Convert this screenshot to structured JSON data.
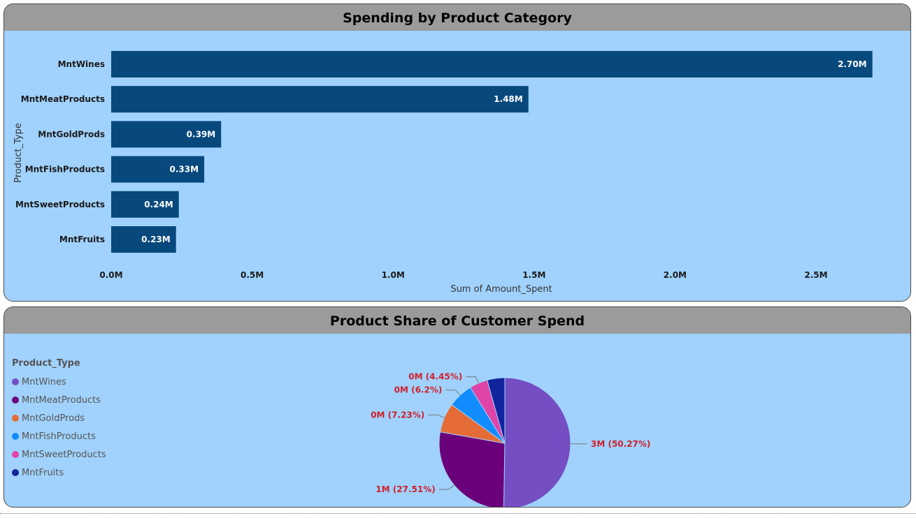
{
  "charts": {
    "bar_title": "Spending by Product Category",
    "pie_title": "Product Share of Customer Spend"
  },
  "colors": {
    "bar": "#08497d",
    "panel_bg": "#a0d2fd",
    "header_bg": "#9b9b9b",
    "pie_label": "#d0202a"
  },
  "chart_data": [
    {
      "type": "bar",
      "orientation": "horizontal",
      "title": "Spending by Product Category",
      "xlabel": "Sum of Amount_Spent",
      "ylabel": "Product_Type",
      "categories": [
        "MntWines",
        "MntMeatProducts",
        "MntGoldProds",
        "MntFishProducts",
        "MntSweetProducts",
        "MntFruits"
      ],
      "values": [
        2.7,
        1.48,
        0.39,
        0.33,
        0.24,
        0.23
      ],
      "value_unit": "M",
      "data_labels": [
        "2.70M",
        "1.48M",
        "0.39M",
        "0.33M",
        "0.24M",
        "0.23M"
      ],
      "xlim": [
        0,
        2.7
      ],
      "ticks": [
        0,
        0.5,
        1.0,
        1.5,
        2.0,
        2.5
      ],
      "tick_labels": [
        "0.0M",
        "0.5M",
        "1.0M",
        "1.5M",
        "2.0M",
        "2.5M"
      ],
      "grid": false
    },
    {
      "type": "pie",
      "title": "Product Share of Customer Spend",
      "legend_title": "Product_Type",
      "legend_position": "left",
      "slices": [
        {
          "name": "MntWines",
          "percent": 50.27,
          "label": "3M (50.27%)",
          "color": "#744ec2"
        },
        {
          "name": "MntMeatProducts",
          "percent": 27.51,
          "label": "1M (27.51%)",
          "color": "#6b007b"
        },
        {
          "name": "MntGoldProds",
          "percent": 7.23,
          "label": "0M (7.23%)",
          "color": "#e66c37"
        },
        {
          "name": "MntFishProducts",
          "percent": 6.2,
          "label": "0M (6.2%)",
          "color": "#118dff"
        },
        {
          "name": "MntSweetProducts",
          "percent": 4.45,
          "label": "0M (4.45%)",
          "color": "#e044a7"
        },
        {
          "name": "MntFruits",
          "percent": 4.34,
          "label": "",
          "color": "#12239e"
        }
      ]
    }
  ]
}
